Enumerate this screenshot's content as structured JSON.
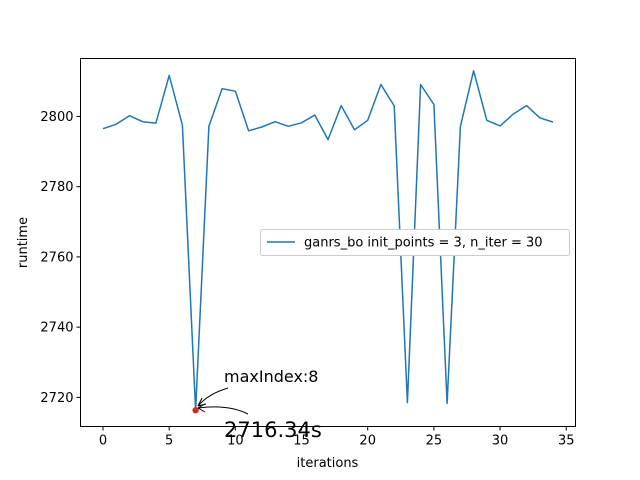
{
  "chart_data": {
    "type": "line",
    "xlabel": "iterations",
    "ylabel": "runtime",
    "xlim": [
      -1.7,
      35.7
    ],
    "ylim": [
      2711.7,
      2816.5
    ],
    "x_ticks": [
      0,
      5,
      10,
      15,
      20,
      25,
      30,
      35
    ],
    "y_ticks": [
      2720,
      2740,
      2760,
      2780,
      2800
    ],
    "legend_position": "center-right",
    "series": [
      {
        "name": "ganrs_bo  init_points = 3, n_iter = 30",
        "color": "#1f77b4",
        "x": [
          0,
          1,
          2,
          3,
          4,
          5,
          6,
          7,
          8,
          9,
          10,
          11,
          12,
          13,
          14,
          15,
          16,
          17,
          18,
          19,
          20,
          21,
          22,
          23,
          24,
          25,
          26,
          27,
          28,
          29,
          30,
          31,
          32,
          33,
          34
        ],
        "values": [
          2796.5,
          2797.8,
          2800.2,
          2798.5,
          2798.1,
          2811.7,
          2797.5,
          2716.34,
          2797.2,
          2807.9,
          2807.2,
          2795.9,
          2797.0,
          2798.5,
          2797.2,
          2798.2,
          2800.4,
          2793.4,
          2803.1,
          2796.2,
          2798.9,
          2809.1,
          2803.0,
          2718.5,
          2809.1,
          2803.4,
          2718.3,
          2797.2,
          2813.0,
          2798.9,
          2797.3,
          2800.7,
          2803.1,
          2799.6,
          2798.4
        ]
      }
    ],
    "highlight": {
      "x": 7,
      "y": 2716.34,
      "color": "#d62728",
      "index_label": "maxIndex:8",
      "value_label": "2716.34s"
    }
  }
}
